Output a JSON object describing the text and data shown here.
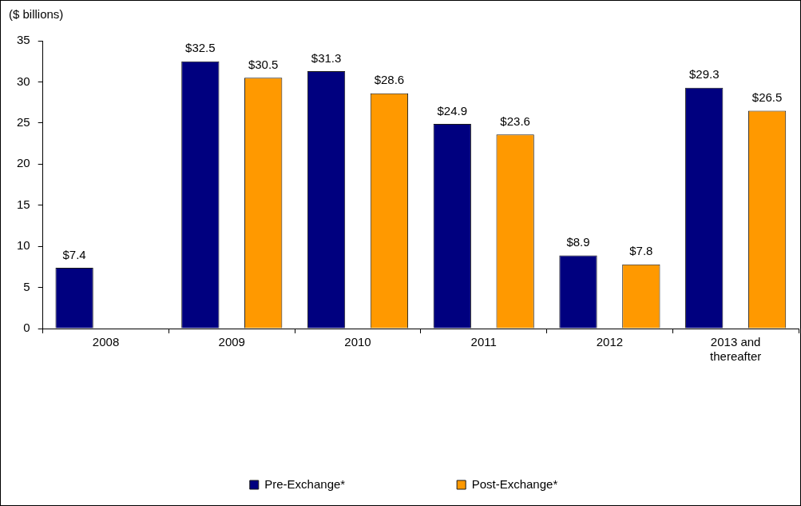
{
  "chart_data": {
    "type": "bar",
    "ylabel": "($ billions)",
    "categories": [
      "2008",
      "2009",
      "2010",
      "2011",
      "2012",
      "2013 and thereafter"
    ],
    "series": [
      {
        "name": "Pre-Exchange*",
        "color": "#00007f",
        "values": [
          7.4,
          32.5,
          31.3,
          24.9,
          8.9,
          29.3
        ],
        "value_labels": [
          "$7.4",
          "$32.5",
          "$31.3",
          "$24.9",
          "$8.9",
          "$29.3"
        ]
      },
      {
        "name": "Post-Exchange*",
        "color": "#ff9900",
        "values": [
          null,
          30.5,
          28.6,
          23.6,
          7.8,
          26.5
        ],
        "value_labels": [
          null,
          "$30.5",
          "$28.6",
          "$23.6",
          "$7.8",
          "$26.5"
        ]
      }
    ],
    "ylim": [
      0,
      35
    ],
    "yticks": [
      0,
      5,
      10,
      15,
      20,
      25,
      30,
      35
    ],
    "grid": false,
    "legend": "bottom"
  }
}
